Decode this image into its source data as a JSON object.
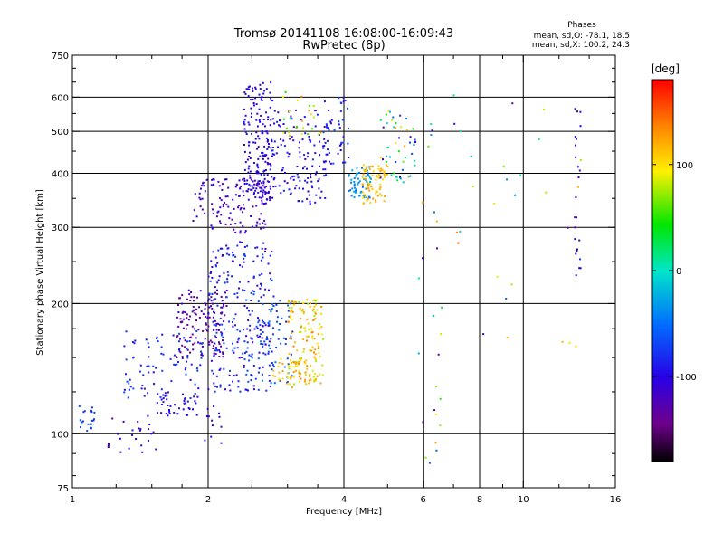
{
  "chart_data": {
    "type": "scatter",
    "title": "Tromsø 20141108 16:08:00-16:09:43",
    "subtitle": "RwPretec (8p)",
    "xlabel": "Frequency [MHz]",
    "ylabel": "Stationary phase Virtual Height [km]",
    "x_scale": "log",
    "y_scale": "log",
    "xlim": [
      1,
      16
    ],
    "ylim": [
      75,
      750
    ],
    "x_ticks": [
      1,
      2,
      4,
      6,
      8,
      10,
      16
    ],
    "y_ticks": [
      75,
      100,
      200,
      300,
      400,
      500,
      600,
      750
    ],
    "x_minor_ticks": [
      1.25,
      1.5,
      1.75,
      2.5,
      3,
      3.5,
      5,
      7,
      9,
      12,
      14
    ],
    "y_minor_ticks": [
      80,
      90,
      125,
      150,
      175,
      250,
      350,
      450,
      550,
      650,
      700
    ],
    "grid": true,
    "grid_x": [
      2,
      4,
      6,
      8,
      10
    ],
    "grid_y": [
      100,
      200,
      300,
      400,
      500,
      600
    ],
    "stats": {
      "heading": "Phases",
      "line1": "mean, sd,O: -78.1, 18.5",
      "line2": "mean, sd,X: 100.2, 24.3"
    },
    "colorbar": {
      "label": "[deg]",
      "min": -180,
      "max": 180,
      "ticks": [
        -100,
        0,
        100
      ]
    },
    "clusters": [
      {
        "f0": 1.02,
        "f1": 1.12,
        "h0": 100,
        "h1": 118,
        "phase": [
          -80,
          -60
        ],
        "n": 20
      },
      {
        "f0": 1.2,
        "f1": 1.55,
        "h0": 88,
        "h1": 110,
        "phase": [
          -130,
          -90
        ],
        "n": 25
      },
      {
        "f0": 1.5,
        "f1": 1.9,
        "h0": 110,
        "h1": 125,
        "phase": [
          -110,
          -90
        ],
        "n": 40
      },
      {
        "f0": 1.3,
        "f1": 1.95,
        "h0": 120,
        "h1": 175,
        "phase": [
          -100,
          -60
        ],
        "n": 90
      },
      {
        "f0": 1.7,
        "f1": 2.2,
        "h0": 150,
        "h1": 215,
        "phase": [
          -150,
          -110
        ],
        "n": 140
      },
      {
        "f0": 2.0,
        "f1": 2.8,
        "h0": 125,
        "h1": 280,
        "phase": [
          -115,
          -60
        ],
        "n": 240
      },
      {
        "f0": 2.4,
        "f1": 3.1,
        "h0": 130,
        "h1": 205,
        "phase": [
          -85,
          -45
        ],
        "n": 80
      },
      {
        "f0": 3.0,
        "f1": 3.6,
        "h0": 130,
        "h1": 205,
        "phase": [
          70,
          140
        ],
        "n": 150
      },
      {
        "f0": 2.75,
        "f1": 3.3,
        "h0": 128,
        "h1": 150,
        "phase": [
          90,
          130
        ],
        "n": 30
      },
      {
        "f0": 1.85,
        "f1": 2.7,
        "h0": 290,
        "h1": 390,
        "phase": [
          -130,
          -100
        ],
        "n": 130
      },
      {
        "f0": 2.4,
        "f1": 2.8,
        "h0": 340,
        "h1": 650,
        "phase": [
          -120,
          -85
        ],
        "n": 160
      },
      {
        "f0": 2.6,
        "f1": 3.7,
        "h0": 340,
        "h1": 560,
        "phase": [
          -115,
          -80
        ],
        "n": 160
      },
      {
        "f0": 2.9,
        "f1": 3.6,
        "h0": 480,
        "h1": 620,
        "phase": [
          30,
          150
        ],
        "n": 25
      },
      {
        "f0": 3.6,
        "f1": 4.1,
        "h0": 420,
        "h1": 600,
        "phase": [
          -110,
          -60
        ],
        "n": 40
      },
      {
        "f0": 4.1,
        "f1": 4.6,
        "h0": 350,
        "h1": 420,
        "phase": [
          -50,
          -20
        ],
        "n": 60
      },
      {
        "f0": 4.4,
        "f1": 5.0,
        "h0": 340,
        "h1": 420,
        "phase": [
          100,
          130
        ],
        "n": 70
      },
      {
        "f0": 4.8,
        "f1": 5.8,
        "h0": 380,
        "h1": 560,
        "phase": [
          -130,
          130
        ],
        "n": 50
      },
      {
        "f0": 1.95,
        "f1": 2.15,
        "h0": 95,
        "h1": 120,
        "phase": [
          -120,
          -90
        ],
        "n": 12
      },
      {
        "f0": 5.8,
        "f1": 6.6,
        "h0": 80,
        "h1": 600,
        "phase": [
          -150,
          160
        ],
        "n": 25
      },
      {
        "f0": 7.0,
        "f1": 14,
        "h0": 150,
        "h1": 650,
        "phase": [
          -150,
          160
        ],
        "n": 30
      },
      {
        "f0": 13.0,
        "f1": 13.4,
        "h0": 210,
        "h1": 580,
        "phase": [
          -120,
          -100
        ],
        "n": 22
      }
    ]
  }
}
